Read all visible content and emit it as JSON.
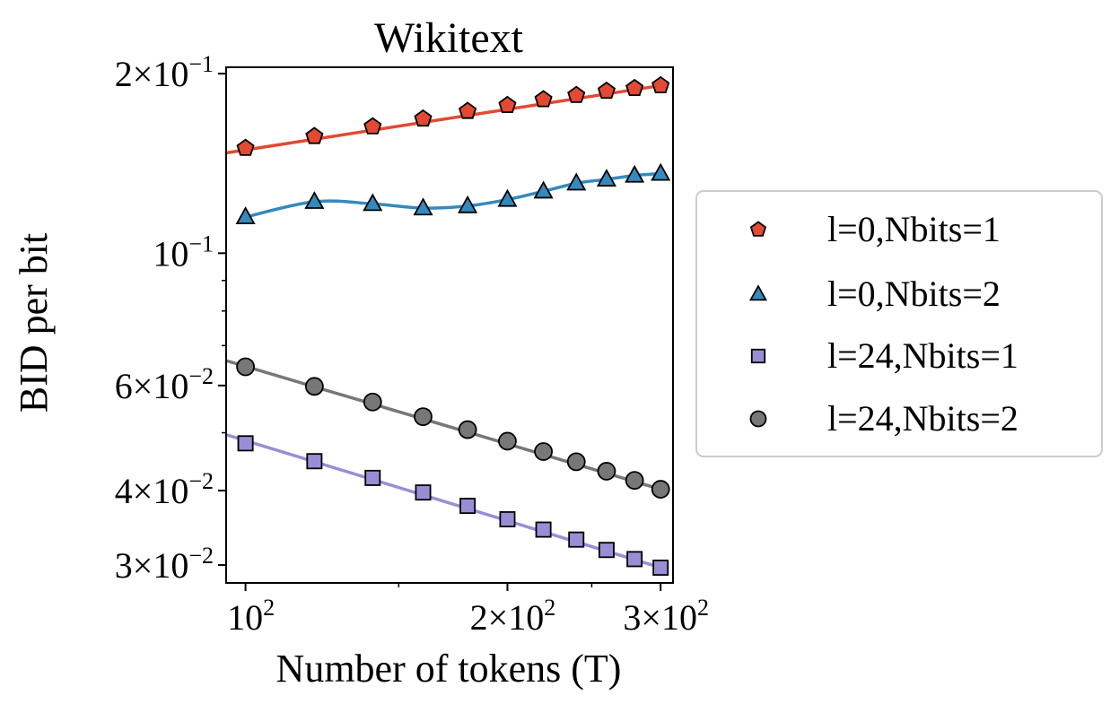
{
  "chart_data": {
    "type": "line",
    "title": "Wikitext",
    "xlabel": "Number of tokens (T)",
    "ylabel": "BID per bit",
    "xscale": "log",
    "yscale": "log",
    "xlim": [
      95,
      310
    ],
    "ylim": [
      0.028,
      0.205
    ],
    "x": [
      100,
      120,
      140,
      160,
      180,
      200,
      220,
      240,
      260,
      280,
      300
    ],
    "x_ticks": [
      {
        "value": 100,
        "base": "10",
        "exp": "2"
      },
      {
        "value": 200,
        "base": "2×10",
        "exp": "2"
      },
      {
        "value": 300,
        "base": "3×10",
        "exp": "2"
      }
    ],
    "y_ticks": [
      {
        "value": 0.2,
        "base": "2×10",
        "exp": "−1"
      },
      {
        "value": 0.1,
        "base": "10",
        "exp": "−1"
      },
      {
        "value": 0.06,
        "base": "6×10",
        "exp": "−2"
      },
      {
        "value": 0.04,
        "base": "4×10",
        "exp": "−2"
      },
      {
        "value": 0.03,
        "base": "3×10",
        "exp": "−2"
      }
    ],
    "y_minor_ticks": [
      0.05,
      0.07,
      0.08,
      0.09
    ],
    "legend_position": "outside-right",
    "series": [
      {
        "name": "l=0,Nbits=1",
        "marker": "pentagon",
        "color": "#e24a33",
        "values": [
          0.15,
          0.157,
          0.163,
          0.168,
          0.173,
          0.177,
          0.181,
          0.184,
          0.187,
          0.189,
          0.191
        ],
        "fit": [
          0.149,
          0.191
        ]
      },
      {
        "name": "l=0,Nbits=2",
        "marker": "triangle",
        "color": "#348abd",
        "values": [
          0.115,
          0.122,
          0.121,
          0.119,
          0.12,
          0.123,
          0.127,
          0.131,
          0.133,
          0.135,
          0.136
        ]
      },
      {
        "name": "l=24,Nbits=1",
        "marker": "square",
        "color": "#988ed5",
        "values": [
          0.048,
          0.0448,
          0.042,
          0.0397,
          0.0377,
          0.0358,
          0.0344,
          0.0331,
          0.0318,
          0.0307,
          0.0297
        ],
        "fit": [
          0.0485,
          0.0297
        ]
      },
      {
        "name": "l=24,Nbits=2",
        "marker": "circle",
        "color": "#777777",
        "values": [
          0.0645,
          0.0598,
          0.0563,
          0.0532,
          0.0506,
          0.0484,
          0.0465,
          0.0447,
          0.0431,
          0.0416,
          0.0402
        ],
        "fit": [
          0.0646,
          0.0402
        ]
      }
    ]
  }
}
